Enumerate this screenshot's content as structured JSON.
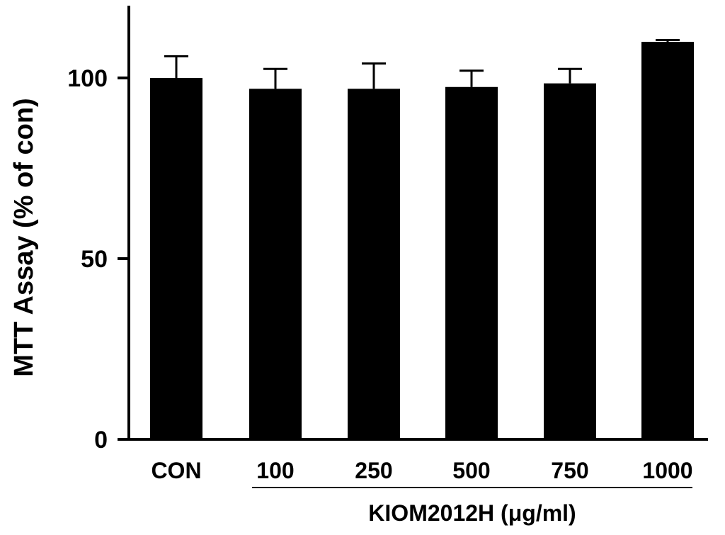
{
  "chart_data": {
    "type": "bar",
    "categories": [
      "CON",
      "100",
      "250",
      "500",
      "750",
      "1000"
    ],
    "values": [
      100,
      97,
      97,
      97.5,
      98.5,
      110
    ],
    "error_upper": [
      6,
      5.5,
      7,
      4.5,
      4,
      0.5
    ],
    "ylabel": "MTT Assay (% of con)",
    "group_label": "KIOM2012H (μg/ml)",
    "group_categories": [
      "100",
      "250",
      "500",
      "750",
      "1000"
    ],
    "ylim": [
      0,
      120
    ],
    "yticks": [
      0,
      50,
      100
    ],
    "bar_color": "#000000",
    "grid": false
  }
}
